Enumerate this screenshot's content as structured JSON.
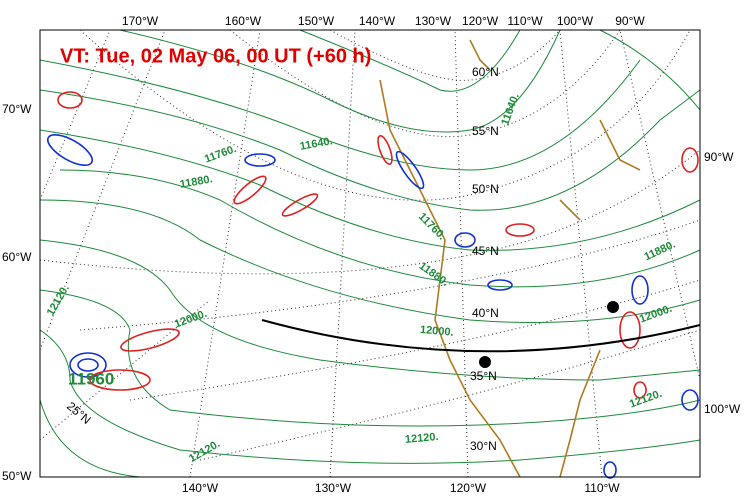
{
  "map": {
    "title": "VT:  Tue, 02 May 06, 00 UT (+60 h)",
    "top_labels": [
      "170°W",
      "160°W",
      "150°W",
      "140°W",
      "130°W",
      "120°W",
      "110°W",
      "100°W",
      "90°W"
    ],
    "bottom_labels": [
      "140°W",
      "130°W",
      "120°W",
      "110°W"
    ],
    "left_labels": [
      "70°W",
      "60°W",
      "50°W"
    ],
    "right_labels": [
      "90°W",
      "100°W"
    ],
    "lat_labels": [
      "60°N",
      "55°N",
      "50°N",
      "45°N",
      "40°N",
      "35°N",
      "30°N",
      "25°N"
    ],
    "contour_labels": [
      "11640.",
      "11760.",
      "11880.",
      "12000.",
      "12120.",
      "11640.",
      "11760.",
      "11880.",
      "12000.",
      "11880.",
      "12000.",
      "12120.",
      "12120.",
      "12120.",
      "11960"
    ]
  }
}
